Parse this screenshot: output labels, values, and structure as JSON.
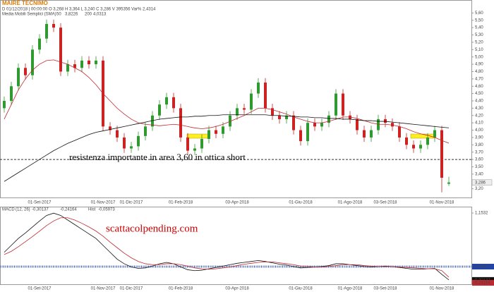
{
  "chart_data": [
    {
      "type": "candlestick",
      "title": "MAIRE TECNIMO",
      "subtitle": "D 01/12/2018 | 00:00:00  O 3,268  H 3,364  L 3,240  C 3,286  V 395356  Var% 2,4314",
      "legend_title": "Media Mobili Semplici (SMA)",
      "annotation": "resistenza importante in area 3,60 in ottica short",
      "watermark": "scattacolpending.com",
      "resistance": 3.6,
      "last_label": "3,286",
      "categories": [
        null,
        null,
        null,
        null,
        null,
        "01-Set-2017",
        null,
        null,
        null,
        null,
        null,
        null,
        null,
        null,
        "01-Nov-2017",
        null,
        null,
        null,
        "01-Dic-2017",
        null,
        null,
        null,
        null,
        null,
        null,
        "01-Feb-2018",
        null,
        null,
        null,
        null,
        null,
        null,
        null,
        "03-Apr-2018",
        null,
        null,
        null,
        null,
        null,
        null,
        null,
        null,
        "01-Giu-2018",
        null,
        null,
        null,
        null,
        null,
        null,
        "01-Ago-2018",
        null,
        null,
        null,
        null,
        "03-Set-2018",
        null,
        null,
        null,
        null,
        null,
        null,
        null,
        "01-Nov-2018",
        null
      ],
      "open": [
        4.3,
        4.4,
        4.6,
        4.85,
        4.75,
        5.1,
        5.25,
        5.45,
        5.4,
        4.8,
        4.9,
        4.85,
        4.95,
        4.9,
        4.95,
        4.05,
        4.0,
        3.9,
        3.75,
        3.78,
        3.92,
        4.05,
        4.2,
        4.35,
        4.45,
        4.3,
        3.9,
        3.72,
        3.75,
        3.88,
        4.0,
        3.95,
        4.05,
        4.2,
        4.3,
        4.28,
        4.5,
        4.65,
        4.3,
        4.2,
        4.15,
        4.2,
        4.0,
        3.85,
        4.1,
        4.05,
        4.1,
        4.2,
        4.5,
        4.2,
        4.15,
        4.0,
        3.9,
        4.0,
        4.15,
        4.1,
        4.05,
        3.9,
        3.8,
        3.75,
        3.8,
        3.9,
        4.0,
        3.268
      ],
      "high": [
        4.46,
        4.66,
        4.91,
        4.91,
        5.16,
        5.31,
        5.51,
        5.51,
        5.46,
        4.96,
        4.96,
        5.01,
        5.01,
        5.01,
        5.01,
        4.11,
        4.06,
        3.96,
        3.84,
        3.98,
        4.11,
        4.26,
        4.41,
        4.51,
        4.51,
        4.36,
        3.96,
        3.81,
        3.94,
        4.06,
        4.06,
        4.11,
        4.26,
        4.36,
        4.36,
        4.56,
        4.71,
        4.71,
        4.36,
        4.26,
        4.26,
        4.26,
        4.06,
        4.16,
        4.16,
        4.16,
        4.26,
        4.56,
        4.56,
        4.26,
        4.21,
        4.06,
        4.06,
        4.21,
        4.21,
        4.16,
        4.11,
        3.96,
        3.86,
        3.86,
        3.96,
        4.06,
        4.06,
        3.364
      ],
      "low": [
        4.24,
        4.34,
        4.54,
        4.69,
        4.69,
        5.04,
        5.19,
        5.34,
        4.74,
        4.74,
        4.79,
        4.79,
        4.84,
        4.84,
        3.99,
        3.94,
        3.84,
        3.69,
        3.69,
        3.72,
        3.86,
        3.99,
        4.14,
        4.29,
        4.24,
        3.84,
        3.66,
        3.66,
        3.69,
        3.82,
        3.89,
        3.89,
        3.99,
        4.14,
        4.22,
        4.22,
        4.44,
        4.24,
        4.14,
        4.09,
        4.09,
        3.94,
        3.79,
        3.79,
        3.99,
        3.99,
        4.04,
        4.14,
        4.14,
        4.09,
        3.94,
        3.84,
        3.84,
        3.94,
        4.04,
        3.99,
        3.84,
        3.74,
        3.69,
        3.69,
        3.74,
        3.84,
        3.15,
        3.24
      ],
      "close": [
        4.4,
        4.6,
        4.85,
        4.75,
        5.1,
        5.25,
        5.45,
        5.4,
        4.8,
        4.9,
        4.85,
        4.95,
        4.9,
        4.95,
        4.05,
        4.0,
        3.9,
        3.75,
        3.78,
        3.92,
        4.05,
        4.2,
        4.35,
        4.45,
        4.3,
        3.9,
        3.72,
        3.75,
        3.88,
        4.0,
        3.95,
        4.05,
        4.2,
        4.3,
        4.28,
        4.5,
        4.65,
        4.3,
        4.2,
        4.15,
        4.2,
        4.0,
        3.85,
        4.1,
        4.05,
        4.1,
        4.2,
        4.5,
        4.2,
        4.15,
        4.0,
        3.9,
        4.0,
        4.15,
        4.1,
        4.05,
        3.9,
        3.8,
        3.75,
        3.8,
        3.9,
        4.0,
        3.35,
        3.286
      ],
      "up_color": "#2f9a2f",
      "down_color": "#cc2222",
      "series": [
        {
          "name": "50",
          "last_label": "3,8226",
          "color": "#c0282d",
          "values": [
            4.15,
            4.35,
            4.55,
            4.7,
            4.82,
            4.9,
            4.95,
            4.96,
            4.93,
            4.9,
            4.85,
            4.8,
            4.72,
            4.62,
            4.5,
            4.4,
            4.3,
            4.22,
            4.15,
            4.1,
            4.08,
            4.07,
            4.06,
            4.07,
            4.08,
            4.07,
            4.05,
            4.03,
            4.02,
            4.03,
            4.05,
            4.08,
            4.12,
            4.16,
            4.2,
            4.25,
            4.3,
            4.3,
            4.28,
            4.25,
            4.22,
            4.18,
            4.15,
            4.12,
            4.1,
            4.1,
            4.12,
            4.15,
            4.18,
            4.18,
            4.16,
            4.13,
            4.1,
            4.08,
            4.08,
            4.07,
            4.05,
            4.02,
            3.98,
            3.95,
            3.93,
            3.9,
            3.86,
            3.8226
          ]
        },
        {
          "name": "200",
          "last_label": "4,0313",
          "color": "#111111",
          "values": [
            3.3,
            3.36,
            3.42,
            3.48,
            3.54,
            3.6,
            3.66,
            3.72,
            3.77,
            3.82,
            3.86,
            3.9,
            3.94,
            3.97,
            3.99,
            4.01,
            4.03,
            4.05,
            4.07,
            4.09,
            4.11,
            4.13,
            4.15,
            4.16,
            4.17,
            4.18,
            4.18,
            4.19,
            4.19,
            4.2,
            4.2,
            4.21,
            4.21,
            4.21,
            4.21,
            4.21,
            4.21,
            4.21,
            4.2,
            4.2,
            4.19,
            4.19,
            4.18,
            4.18,
            4.17,
            4.17,
            4.16,
            4.16,
            4.15,
            4.15,
            4.14,
            4.13,
            4.13,
            4.12,
            4.12,
            4.11,
            4.1,
            4.09,
            4.08,
            4.07,
            4.06,
            4.05,
            4.04,
            4.0313
          ]
        }
      ],
      "ylim": [
        3.1,
        5.7
      ],
      "yticks": [
        {
          "value": 5.6,
          "label": "5,60"
        },
        {
          "value": 5.5,
          "label": "5,50"
        },
        {
          "value": 5.4,
          "label": "5,40"
        },
        {
          "value": 5.3,
          "label": "5,30"
        },
        {
          "value": 5.2,
          "label": "5,20"
        },
        {
          "value": 5.1,
          "label": "5,10"
        },
        {
          "value": 5.0,
          "label": "5,00"
        },
        {
          "value": 4.9,
          "label": "4,90"
        },
        {
          "value": 4.8,
          "label": "4,80"
        },
        {
          "value": 4.7,
          "label": "4,70"
        },
        {
          "value": 4.6,
          "label": "4,60"
        },
        {
          "value": 4.5,
          "label": "4,50"
        },
        {
          "value": 4.4,
          "label": "4,40"
        },
        {
          "value": 4.3,
          "label": "4,30"
        },
        {
          "value": 4.2,
          "label": "4,20"
        },
        {
          "value": 4.1,
          "label": "4,10"
        },
        {
          "value": 4.0,
          "label": "4,00"
        },
        {
          "value": 3.9,
          "label": "3,90"
        },
        {
          "value": 3.8,
          "label": "3,80"
        },
        {
          "value": 3.7,
          "label": "3,70"
        },
        {
          "value": 3.6,
          "label": "3,60"
        },
        {
          "value": 3.5,
          "label": "3,50"
        },
        {
          "value": 3.4,
          "label": "3,40"
        },
        {
          "value": 3.3,
          "label": "3,30"
        },
        {
          "value": 3.2,
          "label": "3,20"
        }
      ]
    },
    {
      "type": "line",
      "title": "MACD",
      "subtitle": "(12, 26)",
      "hist_name": "Hist",
      "hist_label": "-0,05973",
      "categories": [
        null,
        null,
        null,
        null,
        null,
        "01-Set-2017",
        null,
        null,
        null,
        null,
        null,
        null,
        null,
        null,
        "01-Nov-2017",
        null,
        null,
        null,
        "01-Dic-2017",
        null,
        null,
        null,
        null,
        null,
        null,
        "01-Feb-2018",
        null,
        null,
        null,
        null,
        null,
        null,
        null,
        "03-Apr-2018",
        null,
        null,
        null,
        null,
        null,
        null,
        null,
        null,
        "01-Giu-2018",
        null,
        null,
        null,
        null,
        null,
        null,
        "01-Ago-2018",
        null,
        null,
        null,
        null,
        "03-Set-2018",
        null,
        null,
        null,
        null,
        null,
        null,
        null,
        "01-Nov-2018",
        null
      ],
      "series": [
        {
          "last_label": "-0,30137",
          "color": "#111111",
          "values": [
            0.3,
            0.45,
            0.6,
            0.72,
            0.85,
            0.98,
            1.1,
            1.15,
            1.1,
            1.0,
            0.9,
            0.8,
            0.7,
            0.6,
            0.45,
            0.3,
            0.15,
            0.05,
            -0.02,
            -0.05,
            -0.04,
            0.0,
            0.05,
            0.08,
            0.05,
            -0.02,
            -0.08,
            -0.1,
            -0.09,
            -0.06,
            -0.03,
            0.0,
            0.03,
            0.06,
            0.08,
            0.1,
            0.12,
            0.1,
            0.07,
            0.04,
            0.02,
            -0.01,
            -0.04,
            -0.03,
            -0.02,
            -0.01,
            0.01,
            0.05,
            0.05,
            0.03,
            0.01,
            -0.01,
            -0.02,
            -0.01,
            0.0,
            -0.01,
            -0.03,
            -0.05,
            -0.07,
            -0.07,
            -0.06,
            -0.05,
            -0.18,
            -0.30137
          ]
        },
        {
          "last_label": "-0,24164",
          "color": "#c0282d",
          "values": [
            0.25,
            0.32,
            0.42,
            0.53,
            0.64,
            0.76,
            0.88,
            0.98,
            1.05,
            1.05,
            1.0,
            0.93,
            0.85,
            0.76,
            0.65,
            0.52,
            0.4,
            0.28,
            0.18,
            0.1,
            0.05,
            0.03,
            0.03,
            0.05,
            0.05,
            0.03,
            0.0,
            -0.04,
            -0.06,
            -0.07,
            -0.06,
            -0.04,
            -0.02,
            0.01,
            0.04,
            0.06,
            0.08,
            0.09,
            0.09,
            0.07,
            0.05,
            0.03,
            0.0,
            -0.01,
            -0.02,
            -0.02,
            -0.01,
            0.01,
            0.03,
            0.03,
            0.03,
            0.01,
            0.0,
            -0.01,
            -0.01,
            -0.01,
            -0.02,
            -0.03,
            -0.04,
            -0.05,
            -0.06,
            -0.06,
            -0.1,
            -0.24164
          ]
        }
      ],
      "ylim": [
        -0.38,
        1.1532
      ],
      "yticks": [
        {
          "value": 1.1532,
          "label": "1,1532"
        }
      ]
    }
  ]
}
